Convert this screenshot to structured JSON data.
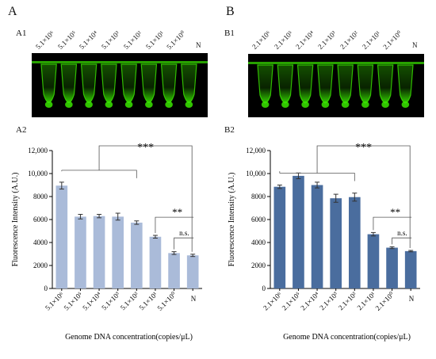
{
  "panels": [
    {
      "letter": "A",
      "photo_label": "A1",
      "chart_label": "A2",
      "tube_labels": [
        "5.1×10⁶",
        "5.1×10⁵",
        "5.1×10⁴",
        "5.1×10³",
        "5.1×10²",
        "5.1×10¹",
        "5.1×10⁰",
        "N"
      ]
    },
    {
      "letter": "B",
      "photo_label": "B1",
      "chart_label": "B2",
      "tube_labels": [
        "2.1×10⁶",
        "2.1×10⁵",
        "2.1×10⁴",
        "2.1×10³",
        "2.1×10²",
        "2.1×10¹",
        "2.1×10⁰",
        "N"
      ]
    }
  ],
  "colors": {
    "tube_glow": "#39e600",
    "bar_light": "#aabbd9",
    "bar_dark": "#4a6d9e",
    "axis": "#000000"
  },
  "chart_data": [
    {
      "type": "bar",
      "categories": [
        "5.1×10⁶",
        "5.1×10⁵",
        "5.1×10⁴",
        "5.1×10³",
        "5.1×10²",
        "5.1×10¹",
        "5.1×10⁰",
        "N"
      ],
      "values": [
        8950,
        6250,
        6300,
        6250,
        5730,
        4500,
        3080,
        2880
      ],
      "errors": [
        300,
        200,
        150,
        300,
        150,
        120,
        120,
        100
      ],
      "ylabel": "Fluorescence Intensity (A.U.)",
      "xlabel": "Genome DNA concentration(copies/μL)",
      "ylim": [
        0,
        12000
      ],
      "yticks": [
        "0",
        "2000",
        "4000",
        "6000",
        "8000",
        "10,000",
        "12,000"
      ],
      "annotations": [
        {
          "text": "***",
          "from": 0,
          "to": 4,
          "ref": 7
        },
        {
          "text": "**",
          "from": 5,
          "to": 7
        },
        {
          "text": "n.s.",
          "from": 6,
          "to": 7
        }
      ]
    },
    {
      "type": "bar",
      "categories": [
        "2.1×10⁶",
        "2.1×10⁵",
        "2.1×10⁴",
        "2.1×10³",
        "2.1×10²",
        "2.1×10¹",
        "2.1×10⁰",
        "N"
      ],
      "values": [
        8850,
        9800,
        9000,
        7850,
        7950,
        4720,
        3550,
        3250
      ],
      "errors": [
        150,
        250,
        250,
        350,
        350,
        150,
        80,
        60
      ],
      "ylabel": "Fluorescence Intensity (A.U.)",
      "xlabel": "Genome DNA concentration(copies/μL)",
      "ylim": [
        0,
        12000
      ],
      "yticks": [
        "0",
        "2000",
        "4000",
        "6000",
        "8000",
        "10,000",
        "12,000"
      ],
      "annotations": [
        {
          "text": "***",
          "from": 0,
          "to": 4,
          "ref": 7
        },
        {
          "text": "**",
          "from": 5,
          "to": 7
        },
        {
          "text": "n.s.",
          "from": 6,
          "to": 7
        }
      ]
    }
  ]
}
